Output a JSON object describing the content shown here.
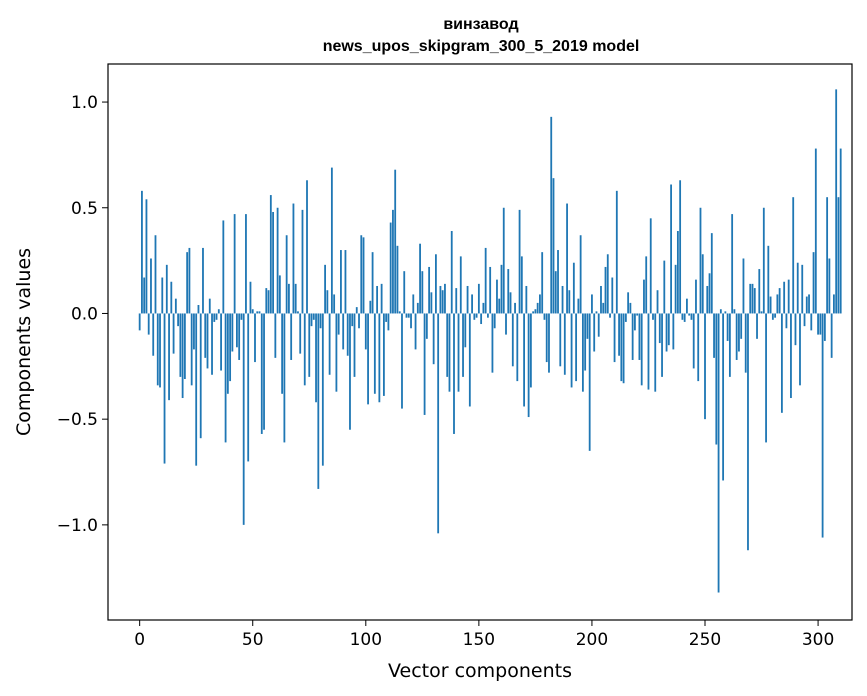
{
  "chart_data": {
    "type": "bar",
    "title_line1": "винзавод",
    "title_line2": "news_upos_skipgram_300_5_2019 model",
    "xlabel": "Vector components",
    "ylabel": "Components values",
    "xlim": [
      -14,
      315
    ],
    "ylim": [
      -1.45,
      1.18
    ],
    "xticks": [
      0,
      50,
      100,
      150,
      200,
      250,
      300
    ],
    "xtick_labels": [
      "0",
      "50",
      "100",
      "150",
      "200",
      "250",
      "300"
    ],
    "yticks": [
      -1.0,
      -0.5,
      0.0,
      0.5,
      1.0
    ],
    "ytick_labels": [
      "−1.0",
      "−0.5",
      "0.0",
      "0.5",
      "1.0"
    ],
    "grid": false,
    "bar_color": "#1f77b4",
    "values": [
      -0.08,
      0.58,
      0.17,
      0.54,
      -0.1,
      0.26,
      -0.2,
      0.37,
      -0.34,
      -0.35,
      0.17,
      -0.71,
      0.23,
      -0.41,
      0.15,
      -0.19,
      0.07,
      -0.06,
      -0.3,
      -0.4,
      -0.31,
      0.29,
      0.31,
      -0.34,
      -0.17,
      -0.72,
      0.04,
      -0.59,
      0.31,
      -0.21,
      -0.26,
      0.07,
      -0.29,
      -0.04,
      -0.03,
      0.02,
      -0.27,
      0.44,
      -0.61,
      -0.38,
      -0.32,
      -0.18,
      0.47,
      -0.16,
      -0.22,
      -0.03,
      -1.0,
      0.47,
      -0.7,
      0.15,
      0.02,
      -0.23,
      0.01,
      0.01,
      -0.57,
      -0.55,
      0.12,
      0.11,
      0.56,
      0.48,
      -0.21,
      0.5,
      0.18,
      -0.38,
      -0.61,
      0.37,
      0.14,
      -0.22,
      0.52,
      0.14,
      0.01,
      -0.19,
      0.49,
      -0.34,
      0.63,
      -0.3,
      -0.06,
      -0.03,
      -0.42,
      -0.83,
      -0.07,
      -0.72,
      0.23,
      0.11,
      -0.29,
      0.69,
      0.09,
      -0.37,
      -0.1,
      0.3,
      -0.17,
      0.3,
      -0.2,
      -0.55,
      -0.06,
      -0.3,
      0.03,
      -0.07,
      0.37,
      0.36,
      -0.17,
      -0.43,
      0.06,
      0.29,
      -0.38,
      0.13,
      -0.42,
      0.14,
      -0.39,
      -0.04,
      -0.08,
      0.43,
      0.49,
      0.68,
      0.32,
      0.01,
      -0.45,
      0.2,
      -0.02,
      -0.02,
      -0.07,
      0.09,
      -0.17,
      0.05,
      0.33,
      0.2,
      -0.48,
      -0.12,
      0.22,
      0.1,
      -0.24,
      0.28,
      -1.04,
      0.13,
      0.11,
      0.14,
      -0.3,
      -0.37,
      0.39,
      -0.57,
      0.12,
      -0.37,
      0.27,
      -0.3,
      -0.16,
      0.13,
      -0.44,
      0.09,
      -0.03,
      -0.02,
      0.14,
      -0.05,
      0.05,
      0.31,
      -0.02,
      0.22,
      -0.28,
      -0.07,
      0.16,
      0.07,
      0.23,
      0.5,
      -0.1,
      0.21,
      0.1,
      -0.25,
      0.05,
      -0.32,
      0.49,
      0.27,
      -0.44,
      0.13,
      -0.49,
      -0.35,
      0.01,
      0.02,
      0.05,
      0.09,
      0.29,
      -0.03,
      -0.23,
      -0.28,
      0.93,
      0.64,
      0.2,
      0.3,
      -0.25,
      0.13,
      -0.29,
      0.52,
      0.11,
      -0.35,
      0.24,
      -0.32,
      0.07,
      0.37,
      -0.37,
      -0.27,
      -0.12,
      -0.65,
      0.09,
      -0.18,
      0.01,
      -0.11,
      0.13,
      0.05,
      0.22,
      0.28,
      -0.02,
      0.17,
      -0.23,
      0.58,
      -0.2,
      -0.32,
      -0.33,
      -0.04,
      0.1,
      0.05,
      -0.22,
      -0.08,
      -0.01,
      -0.22,
      -0.34,
      0.16,
      0.27,
      -0.36,
      0.45,
      -0.03,
      -0.37,
      0.11,
      -0.14,
      -0.3,
      0.25,
      -0.18,
      -0.15,
      0.61,
      -0.17,
      0.23,
      0.39,
      0.63,
      -0.03,
      -0.04,
      0.07,
      -0.01,
      -0.03,
      -0.26,
      0.16,
      -0.32,
      0.5,
      0.28,
      -0.5,
      0.13,
      0.19,
      0.38,
      -0.21,
      -0.62,
      -1.32,
      0.02,
      -0.79,
      0.01,
      -0.13,
      -0.3,
      0.47,
      0.02,
      -0.22,
      -0.18,
      -0.12,
      0.26,
      -0.28,
      -1.12,
      0.14,
      0.14,
      0.12,
      -0.12,
      0.21,
      0.01,
      0.5,
      -0.61,
      0.32,
      0.08,
      -0.03,
      -0.02,
      0.09,
      0.12,
      -0.47,
      0.15,
      -0.07,
      0.16,
      -0.4,
      0.55,
      -0.15,
      0.24,
      -0.34,
      0.23,
      -0.06,
      0.08,
      0.09,
      -0.08,
      0.29,
      0.78,
      -0.1,
      -0.1,
      -1.06,
      -0.13,
      0.55,
      0.26,
      -0.21,
      0.09,
      1.06,
      0.55,
      0.78
    ]
  }
}
